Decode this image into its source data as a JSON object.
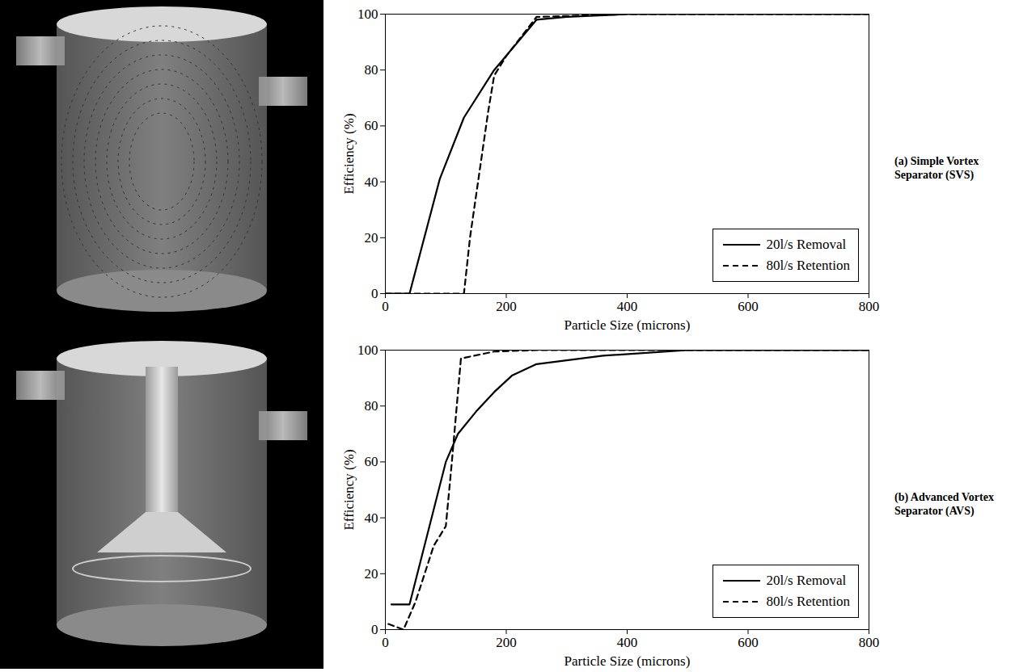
{
  "chart_data": [
    {
      "type": "line",
      "title": "(a)  Simple Vortex Separator (SVS)",
      "x_label": "Particle Size (microns)",
      "y_label": "Efficiency (%)",
      "xlim": [
        0,
        800
      ],
      "xticks": [
        0,
        200,
        400,
        600,
        800
      ],
      "ylim": [
        0,
        100
      ],
      "yticks": [
        0,
        20,
        40,
        60,
        80,
        100
      ],
      "legend": "bottom-right",
      "series": [
        {
          "name": "20l/s Removal",
          "color": "#000000",
          "line_style": "solid",
          "x": [
            0,
            40,
            90,
            130,
            180,
            250,
            300,
            400,
            800
          ],
          "values": [
            0,
            0,
            41,
            63,
            80,
            98,
            99,
            100,
            100
          ]
        },
        {
          "name": "80l/s Retention",
          "color": "#000000",
          "line_style": "dashed",
          "x": [
            0,
            130,
            140,
            170,
            180,
            200,
            250,
            400,
            800
          ],
          "values": [
            0,
            0,
            20,
            65,
            78,
            85,
            99,
            100,
            100
          ]
        }
      ]
    },
    {
      "type": "line",
      "title": "(b)  Advanced Vortex Separator (AVS)",
      "x_label": "Particle Size (microns)",
      "y_label": "Efficiency (%)",
      "xlim": [
        0,
        800
      ],
      "xticks": [
        0,
        200,
        400,
        600,
        800
      ],
      "ylim": [
        0,
        100
      ],
      "yticks": [
        0,
        20,
        40,
        60,
        80,
        100
      ],
      "legend": "bottom-right",
      "series": [
        {
          "name": "20l/s Removal",
          "color": "#000000",
          "line_style": "solid",
          "x": [
            10,
            40,
            80,
            100,
            120,
            150,
            180,
            210,
            250,
            360,
            500,
            800
          ],
          "values": [
            9,
            9,
            43,
            60,
            70,
            78,
            85,
            91,
            95,
            98,
            100,
            100
          ]
        },
        {
          "name": "80l/s Retention",
          "color": "#000000",
          "line_style": "dashed",
          "x": [
            5,
            30,
            50,
            80,
            100,
            110,
            125,
            180,
            250,
            800
          ],
          "values": [
            2,
            0,
            10,
            30,
            37,
            60,
            97,
            99.5,
            100,
            100
          ]
        }
      ]
    }
  ]
}
